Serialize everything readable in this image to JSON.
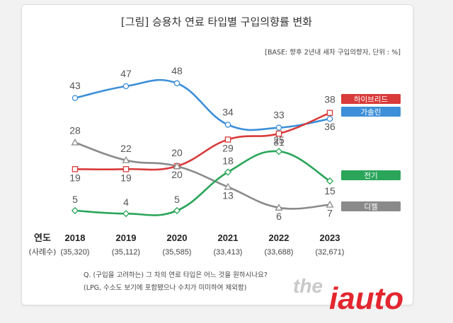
{
  "chart_data": {
    "type": "line",
    "title": "[그림] 승용차 연료 타입별 구입의향률 변화",
    "subtitle": "[BASE: 향후 2년내 새차 구입의향자, 단위 : %]",
    "xlabel": "연도",
    "sample_label": "(사례수)",
    "categories": [
      "2018",
      "2019",
      "2020",
      "2021",
      "2022",
      "2023"
    ],
    "sample_sizes": [
      "(35,320)",
      "(35,112)",
      "(35,585)",
      "(33,413)",
      "(33,688)",
      "(32,671)"
    ],
    "ylim": [
      0,
      55
    ],
    "grid": false,
    "legend_position": "right",
    "series": [
      {
        "name": "가솔린",
        "values": [
          43,
          47,
          48,
          34,
          33,
          36
        ],
        "color": "#3c8fd8",
        "marker": "circle"
      },
      {
        "name": "하이브리드",
        "values": [
          19,
          19,
          20,
          29,
          31,
          38
        ],
        "color": "#d93a3a",
        "marker": "square"
      },
      {
        "name": "디젤",
        "values": [
          28,
          22,
          20,
          13,
          6,
          7
        ],
        "color": "#8a8a8a",
        "marker": "triangle"
      },
      {
        "name": "전기",
        "values": [
          5,
          4,
          5,
          18,
          25,
          15
        ],
        "color": "#2aa55a",
        "marker": "diamond"
      }
    ]
  },
  "footnotes": [
    "Q. (구입을 고려하는) 그 차의 연료 타입은 어느 것을 원하시나요?",
    "(LPG, 수소도 보기에 포함됐으나 수치가 미미하여 제외함)"
  ],
  "watermark": {
    "prefix": "the",
    "brand": "iauto"
  }
}
